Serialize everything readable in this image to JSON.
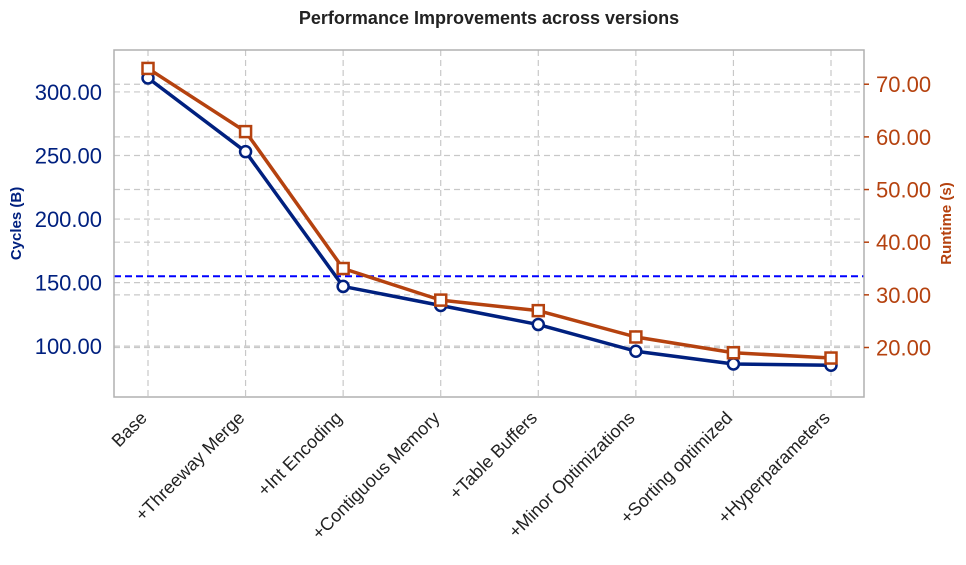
{
  "chart_data": {
    "type": "line",
    "title": "Performance Improvements across versions",
    "xlabel": "",
    "categories": [
      "Base",
      "+Threeway Merge",
      "+Int Encoding",
      "+Contiguous Memory",
      "+Table Buffers",
      "+Minor Optimizations",
      "+Sorting optimized",
      "+Hyperparameters"
    ],
    "y_left": {
      "label": "Cycles (B)",
      "color": "#00207f",
      "ylim": [
        60,
        333
      ],
      "ticks": [
        "100.00",
        "150.00",
        "200.00",
        "250.00",
        "300.00"
      ],
      "tick_values": [
        100,
        150,
        200,
        250,
        300
      ]
    },
    "y_right": {
      "label": "Runtime (s)",
      "color": "#b5420f",
      "ylim": [
        10.6,
        76.5
      ],
      "ticks": [
        "20.00",
        "30.00",
        "40.00",
        "50.00",
        "60.00",
        "70.00"
      ],
      "tick_values": [
        20,
        30,
        40,
        50,
        60,
        70
      ]
    },
    "series": [
      {
        "axis": "left",
        "marker": "circle",
        "color": "#00207f",
        "values": [
          311,
          253,
          147,
          132,
          117,
          96,
          86,
          85
        ]
      },
      {
        "axis": "right",
        "marker": "square",
        "color": "#b5420f",
        "values": [
          73,
          61,
          35,
          29,
          27,
          22,
          19,
          18
        ]
      }
    ],
    "reference_line": {
      "axis": "left",
      "value": 155,
      "style": "dashed",
      "color": "#0000ff"
    },
    "grid": true
  }
}
